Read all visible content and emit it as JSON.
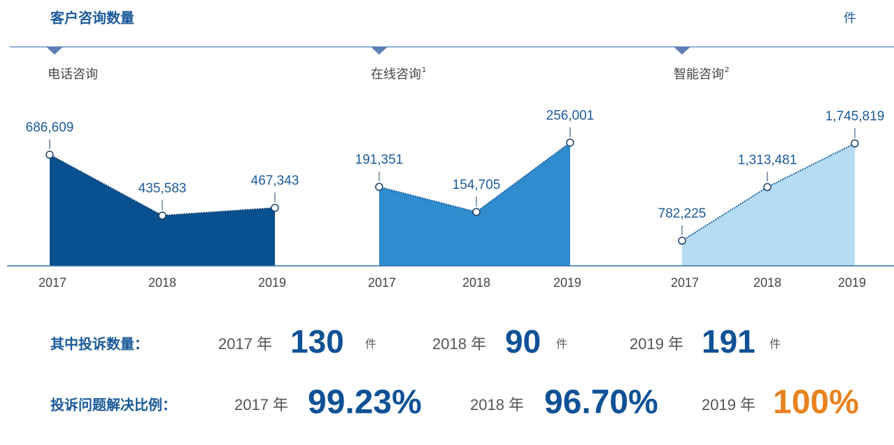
{
  "title": "客户咨询数量",
  "unit": "件",
  "chart_data": [
    {
      "type": "area",
      "title": "电话咨询",
      "categories": [
        "2017",
        "2018",
        "2019"
      ],
      "values": [
        686609,
        435583,
        467343
      ],
      "value_labels": [
        "686,609",
        "435,583",
        "467,343"
      ],
      "color": "#08508f",
      "line_color": "#0a3d6e",
      "ylim": [
        228000,
        892000
      ]
    },
    {
      "type": "area",
      "title": "在线咨询",
      "footnote": "1",
      "categories": [
        "2017",
        "2018",
        "2019"
      ],
      "values": [
        191351,
        154705,
        256001
      ],
      "value_labels": [
        "191,351",
        "154,705",
        "256,001"
      ],
      "color": "#2e8ccf",
      "line_color": "#1b5f9a",
      "ylim": [
        76000,
        311000
      ]
    },
    {
      "type": "area",
      "title": "智能咨询",
      "footnote": "2",
      "categories": [
        "2017",
        "2018",
        "2019"
      ],
      "values": [
        782225,
        1313481,
        1745819
      ],
      "value_labels": [
        "782,225",
        "1,313,481",
        "1,745,819"
      ],
      "color": "#b5dcf4",
      "line_color": "#1b5f9a",
      "ylim": [
        533000,
        2127000
      ]
    }
  ],
  "complaints": {
    "label": "其中投诉数量：",
    "items": [
      {
        "year": "2017 年",
        "value": "130",
        "unit": "件",
        "color": "#0f5196"
      },
      {
        "year": "2018 年",
        "value": "90",
        "unit": "件",
        "color": "#0f5196"
      },
      {
        "year": "2019 年",
        "value": "191",
        "unit": "件",
        "color": "#0f5196"
      }
    ]
  },
  "resolution": {
    "label": "投诉问题解决比例：",
    "items": [
      {
        "year": "2017 年",
        "value": "99.23%",
        "color": "#0f5196"
      },
      {
        "year": "2018 年",
        "value": "96.70%",
        "color": "#0f5196"
      },
      {
        "year": "2019 年",
        "value": "100%",
        "color": "#e8821e"
      }
    ]
  }
}
